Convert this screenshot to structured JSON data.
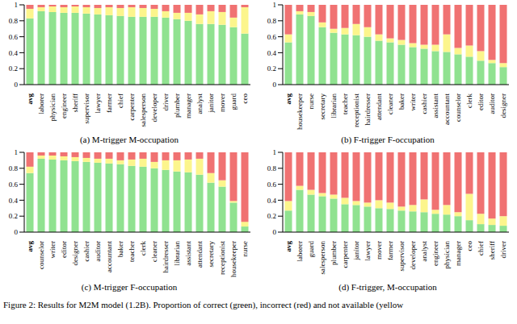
{
  "chart_data": [
    {
      "type": "bar",
      "title": "(a) M-trigger M-occupation",
      "stacked": true,
      "grid": false,
      "categories": [
        "avg",
        "laborer",
        "physician",
        "engineer",
        "sheriff",
        "supervisor",
        "lawyer",
        "farmer",
        "chief",
        "carpenter",
        "salesperson",
        "developer",
        "driver",
        "plumber",
        "manager",
        "analyst",
        "janitor",
        "mover",
        "guard",
        "ceo"
      ],
      "series": [
        {
          "name": "correct",
          "color": "#90e290",
          "values": [
            0.83,
            0.92,
            0.91,
            0.9,
            0.9,
            0.89,
            0.88,
            0.87,
            0.86,
            0.85,
            0.85,
            0.85,
            0.84,
            0.82,
            0.8,
            0.76,
            0.76,
            0.75,
            0.72,
            0.64
          ]
        },
        {
          "name": "not available",
          "color": "#fcf58c",
          "values": [
            0.12,
            0.05,
            0.07,
            0.07,
            0.08,
            0.08,
            0.08,
            0.1,
            0.1,
            0.12,
            0.11,
            0.1,
            0.08,
            0.08,
            0.1,
            0.12,
            0.16,
            0.16,
            0.12,
            0.33
          ]
        },
        {
          "name": "incorrect",
          "color": "#f07272",
          "values": [
            0.05,
            0.03,
            0.02,
            0.03,
            0.02,
            0.03,
            0.04,
            0.03,
            0.04,
            0.03,
            0.04,
            0.05,
            0.08,
            0.1,
            0.1,
            0.12,
            0.08,
            0.09,
            0.16,
            0.03
          ]
        }
      ],
      "ylim": [
        0,
        1
      ],
      "yticks": [
        0,
        0.2,
        0.4,
        0.6,
        0.8,
        1
      ]
    },
    {
      "type": "bar",
      "title": "(b) F-trigger F-occupation",
      "stacked": true,
      "grid": false,
      "categories": [
        "avg",
        "housekeeper",
        "nurse",
        "secretary",
        "librarian",
        "teacher",
        "receptionist",
        "hairdresser",
        "attendant",
        "cleaner",
        "baker",
        "writer",
        "cashier",
        "assistant",
        "accountant",
        "counselor",
        "clerk",
        "editor",
        "auditor",
        "designer"
      ],
      "series": [
        {
          "name": "correct",
          "color": "#90e290",
          "values": [
            0.53,
            0.88,
            0.86,
            0.72,
            0.65,
            0.63,
            0.62,
            0.6,
            0.55,
            0.53,
            0.5,
            0.47,
            0.45,
            0.42,
            0.41,
            0.38,
            0.35,
            0.3,
            0.27,
            0.22
          ]
        },
        {
          "name": "not available",
          "color": "#fcf58c",
          "values": [
            0.1,
            0.04,
            0.05,
            0.06,
            0.05,
            0.08,
            0.14,
            0.12,
            0.08,
            0.05,
            0.06,
            0.05,
            0.05,
            0.08,
            0.22,
            0.08,
            0.14,
            0.12,
            0.04,
            0.05
          ]
        },
        {
          "name": "incorrect",
          "color": "#f07272",
          "values": [
            0.37,
            0.08,
            0.09,
            0.22,
            0.3,
            0.29,
            0.24,
            0.28,
            0.37,
            0.42,
            0.44,
            0.48,
            0.5,
            0.5,
            0.37,
            0.54,
            0.51,
            0.58,
            0.69,
            0.73
          ]
        }
      ],
      "ylim": [
        0,
        1
      ],
      "yticks": [
        0,
        0.2,
        0.4,
        0.6,
        0.8,
        1
      ]
    },
    {
      "type": "bar",
      "title": "(c) M-trigger F-occupation",
      "stacked": true,
      "grid": false,
      "categories": [
        "avg",
        "counselor",
        "writer",
        "editor",
        "designer",
        "cashier",
        "auditor",
        "accountant",
        "baker",
        "teacher",
        "clerk",
        "cleaner",
        "hairdresser",
        "librarian",
        "assistant",
        "attendant",
        "secretary",
        "receptionist",
        "housekeeper",
        "nurse"
      ],
      "series": [
        {
          "name": "correct",
          "color": "#90e290",
          "values": [
            0.74,
            0.92,
            0.91,
            0.9,
            0.89,
            0.88,
            0.87,
            0.86,
            0.85,
            0.83,
            0.82,
            0.8,
            0.78,
            0.76,
            0.75,
            0.72,
            0.62,
            0.57,
            0.37,
            0.07
          ]
        },
        {
          "name": "not available",
          "color": "#fcf58c",
          "values": [
            0.08,
            0.04,
            0.05,
            0.05,
            0.05,
            0.05,
            0.05,
            0.06,
            0.05,
            0.08,
            0.1,
            0.08,
            0.12,
            0.14,
            0.16,
            0.2,
            0.12,
            0.08,
            0.02,
            0.06
          ]
        },
        {
          "name": "incorrect",
          "color": "#f07272",
          "values": [
            0.18,
            0.04,
            0.04,
            0.05,
            0.06,
            0.07,
            0.08,
            0.08,
            0.1,
            0.09,
            0.08,
            0.12,
            0.1,
            0.1,
            0.09,
            0.08,
            0.26,
            0.35,
            0.61,
            0.87
          ]
        }
      ],
      "ylim": [
        0,
        1
      ],
      "yticks": [
        0,
        0.2,
        0.4,
        0.6,
        0.8,
        1
      ]
    },
    {
      "type": "bar",
      "title": "(d) F-trigger, M-occupation",
      "stacked": true,
      "grid": false,
      "categories": [
        "avg",
        "laborer",
        "guard",
        "salesperson",
        "plumber",
        "carpenter",
        "janitor",
        "lawyer",
        "mover",
        "farmer",
        "supervisor",
        "developer",
        "analyst",
        "engineer",
        "physician",
        "manager",
        "ceo",
        "chief",
        "sheriff",
        "driver"
      ],
      "series": [
        {
          "name": "correct",
          "color": "#90e290",
          "values": [
            0.27,
            0.53,
            0.47,
            0.45,
            0.42,
            0.35,
            0.34,
            0.32,
            0.3,
            0.29,
            0.27,
            0.26,
            0.25,
            0.23,
            0.22,
            0.2,
            0.15,
            0.1,
            0.09,
            0.08
          ]
        },
        {
          "name": "not available",
          "color": "#fcf58c",
          "values": [
            0.12,
            0.05,
            0.06,
            0.04,
            0.05,
            0.08,
            0.05,
            0.05,
            0.1,
            0.08,
            0.05,
            0.08,
            0.16,
            0.05,
            0.12,
            0.05,
            0.33,
            0.13,
            0.08,
            0.12
          ]
        },
        {
          "name": "incorrect",
          "color": "#f07272",
          "values": [
            0.61,
            0.42,
            0.47,
            0.51,
            0.53,
            0.57,
            0.61,
            0.63,
            0.6,
            0.63,
            0.68,
            0.66,
            0.59,
            0.72,
            0.66,
            0.75,
            0.52,
            0.77,
            0.83,
            0.8
          ]
        }
      ],
      "ylim": [
        0,
        1
      ],
      "yticks": [
        0,
        0.2,
        0.4,
        0.6,
        0.8,
        1
      ]
    }
  ],
  "caption": "Figure 2: Results for M2M model (1.2B). Proportion of correct (green), incorrect (red) and not available (yellow"
}
